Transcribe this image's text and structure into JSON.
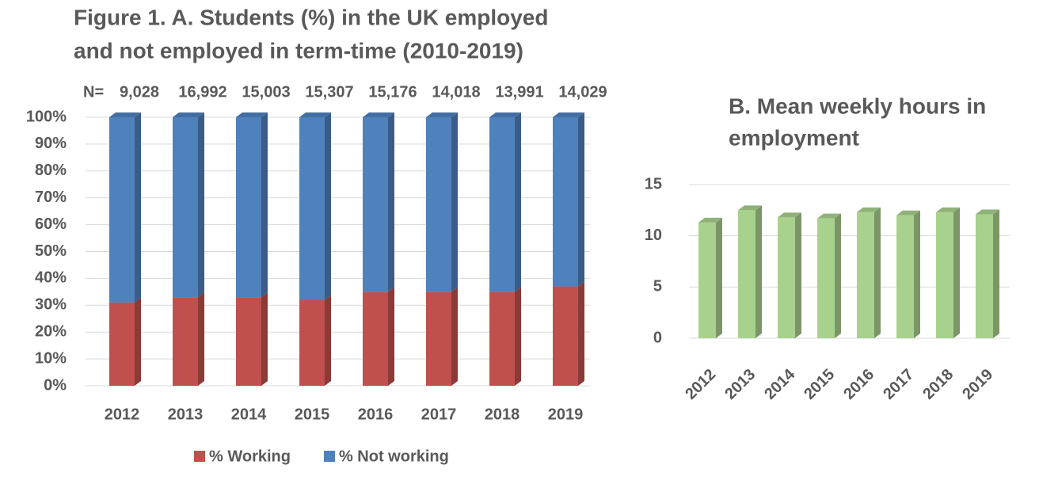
{
  "chart_data": [
    {
      "type": "stacked_bar",
      "title": [
        "Figure 1. A. Students (%) in the UK employed",
        "and not employed in term-time (2010-2019)"
      ],
      "categories": [
        "2012",
        "2013",
        "2014",
        "2015",
        "2016",
        "2017",
        "2018",
        "2019"
      ],
      "series": [
        {
          "name": "% Working",
          "color": "#c0504d",
          "values": [
            31,
            33,
            33,
            32,
            35,
            35,
            35,
            37
          ]
        },
        {
          "name": "% Not working",
          "color": "#4f81bd",
          "values": [
            69,
            67,
            67,
            68,
            65,
            65,
            65,
            63
          ]
        }
      ],
      "annotations": {
        "prefix": "N=",
        "counts": [
          "9,028",
          "16,992",
          "15,003",
          "15,307",
          "15,176",
          "14,018",
          "13,991",
          "14,029"
        ]
      },
      "ylim": [
        0,
        100
      ],
      "yticks": [
        {
          "value": 0,
          "label": "0%"
        },
        {
          "value": 10,
          "label": "10%"
        },
        {
          "value": 20,
          "label": "20%"
        },
        {
          "value": 30,
          "label": "30%"
        },
        {
          "value": 40,
          "label": "40%"
        },
        {
          "value": 50,
          "label": "50%"
        },
        {
          "value": 60,
          "label": "60%"
        },
        {
          "value": 70,
          "label": "70%"
        },
        {
          "value": 80,
          "label": "80%"
        },
        {
          "value": 90,
          "label": "90%"
        },
        {
          "value": 100,
          "label": "100%"
        }
      ],
      "grid": true,
      "legend": "bottom"
    },
    {
      "type": "bar",
      "title": [
        "B. Mean weekly hours in",
        "employment"
      ],
      "categories": [
        "2012",
        "2013",
        "2014",
        "2015",
        "2016",
        "2017",
        "2018",
        "2019"
      ],
      "values": [
        11.3,
        12.5,
        11.8,
        11.7,
        12.3,
        12.0,
        12.3,
        12.1
      ],
      "color": "#a9d18e",
      "ylim": [
        0,
        15
      ],
      "yticks": [
        0,
        5,
        10,
        15
      ],
      "grid": true
    }
  ]
}
